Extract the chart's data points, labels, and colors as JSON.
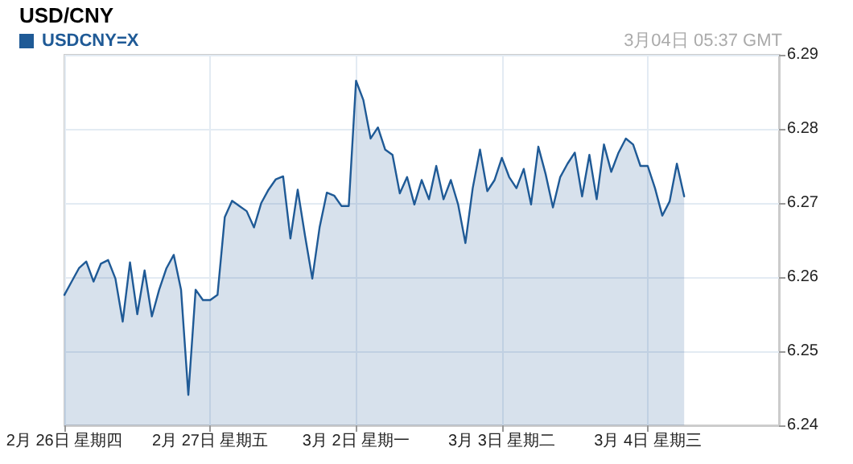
{
  "chart_data": {
    "type": "area",
    "title": "USD/CNY",
    "annotations": [
      "3月04日 05:37 GMT"
    ],
    "categories": [
      "2月 26日 星期四",
      null,
      null,
      null,
      null,
      null,
      null,
      null,
      null,
      null,
      null,
      null,
      null,
      null,
      null,
      null,
      null,
      null,
      null,
      null,
      "2月 27日 星期五",
      null,
      null,
      null,
      null,
      null,
      null,
      null,
      null,
      null,
      null,
      null,
      null,
      null,
      null,
      null,
      null,
      null,
      null,
      null,
      "3月 2日 星期一",
      null,
      null,
      null,
      null,
      null,
      null,
      null,
      null,
      null,
      null,
      null,
      null,
      null,
      null,
      null,
      null,
      null,
      null,
      null,
      "3月 3日 星期二",
      null,
      null,
      null,
      null,
      null,
      null,
      null,
      null,
      null,
      null,
      null,
      null,
      null,
      null,
      null,
      null,
      null,
      null,
      null,
      "3月 4日 星期三",
      null,
      null,
      null,
      null,
      null,
      null,
      null,
      null,
      null,
      null,
      null,
      null,
      null,
      null,
      null,
      null,
      null,
      null
    ],
    "series": [
      {
        "name": "USDCNY=X",
        "color": "#1f5a96",
        "values": [
          6.2576,
          6.2594,
          6.2612,
          6.2621,
          6.2594,
          6.2618,
          6.2623,
          6.2598,
          6.254,
          6.262,
          6.255,
          6.2609,
          6.2547,
          6.2583,
          6.2612,
          6.263,
          6.2583,
          6.2441,
          6.2583,
          6.2569,
          6.2569,
          6.2576,
          6.2681,
          6.2703,
          6.2696,
          6.2689,
          6.2667,
          6.27,
          6.2718,
          6.2732,
          6.2736,
          6.2652,
          6.2718,
          6.2656,
          6.2598,
          6.2667,
          6.2714,
          6.271,
          6.2696,
          6.2696,
          6.2865,
          6.2839,
          6.2787,
          6.2802,
          6.2772,
          6.2765,
          6.2713,
          6.2735,
          6.2698,
          6.2731,
          6.2705,
          6.275,
          6.2705,
          6.2731,
          6.2698,
          6.2646,
          6.272,
          6.2772,
          6.2716,
          6.2731,
          6.2761,
          6.2735,
          6.272,
          6.2746,
          6.2698,
          6.2776,
          6.2739,
          6.2694,
          6.2735,
          6.2753,
          6.2768,
          6.2709,
          6.2765,
          6.2705,
          6.2779,
          6.2742,
          6.2768,
          6.2787,
          6.2779,
          6.275,
          6.275,
          6.272,
          6.2683,
          6.2702,
          6.2753,
          6.2709,
          null,
          null,
          null,
          null,
          null,
          null,
          null,
          null,
          null,
          null,
          null,
          null,
          null
        ]
      }
    ],
    "ylim": [
      6.24,
      6.29
    ],
    "yticks": [
      6.24,
      6.25,
      6.26,
      6.27,
      6.28,
      6.29
    ],
    "grid": true,
    "legend": "top left",
    "marker": "none",
    "line_style": "solid"
  }
}
